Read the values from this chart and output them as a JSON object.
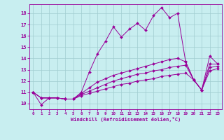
{
  "xlabel": "Windchill (Refroidissement éolien,°C)",
  "background_color": "#c8eef0",
  "grid_color": "#a0ccd0",
  "line_color": "#990099",
  "xlim": [
    -0.5,
    23.5
  ],
  "ylim": [
    9.5,
    18.8
  ],
  "xticks": [
    0,
    1,
    2,
    3,
    4,
    5,
    6,
    7,
    8,
    9,
    10,
    11,
    12,
    13,
    14,
    15,
    16,
    17,
    18,
    19,
    20,
    21,
    22,
    23
  ],
  "yticks": [
    10,
    11,
    12,
    13,
    14,
    15,
    16,
    17,
    18
  ],
  "series": [
    [
      11.0,
      9.9,
      10.5,
      10.5,
      10.4,
      10.4,
      11.0,
      12.8,
      14.4,
      15.5,
      16.8,
      15.9,
      16.6,
      17.1,
      16.5,
      17.8,
      18.5,
      17.6,
      18.0,
      13.7,
      12.1,
      11.2,
      14.2,
      13.5
    ],
    [
      11.0,
      10.5,
      10.5,
      10.5,
      10.4,
      10.4,
      10.9,
      11.4,
      11.9,
      12.2,
      12.5,
      12.7,
      12.9,
      13.1,
      13.3,
      13.5,
      13.7,
      13.9,
      14.0,
      13.7,
      12.1,
      11.2,
      13.5,
      13.5
    ],
    [
      11.0,
      10.5,
      10.5,
      10.5,
      10.4,
      10.4,
      10.8,
      11.1,
      11.4,
      11.7,
      12.0,
      12.2,
      12.4,
      12.6,
      12.7,
      12.9,
      13.0,
      13.2,
      13.3,
      13.4,
      12.1,
      11.2,
      13.2,
      13.3
    ],
    [
      11.0,
      10.5,
      10.5,
      10.5,
      10.4,
      10.4,
      10.7,
      10.9,
      11.1,
      11.3,
      11.5,
      11.7,
      11.8,
      12.0,
      12.1,
      12.2,
      12.4,
      12.5,
      12.6,
      12.7,
      12.1,
      11.2,
      12.9,
      13.1
    ]
  ]
}
